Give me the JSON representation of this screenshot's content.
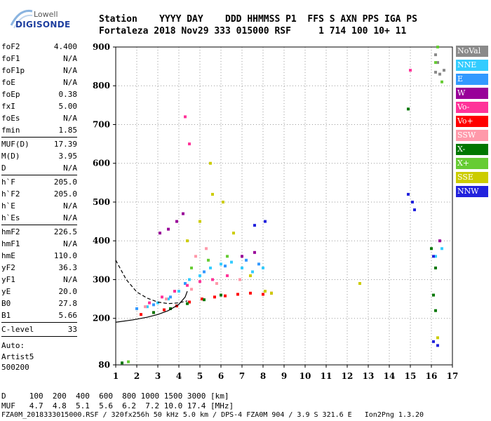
{
  "logo": {
    "line1": "Lowell",
    "line2": "DIGISONDE"
  },
  "header": {
    "row1": "Station    YYYY DAY    DDD HHMMSS P1  FFS S AXN PPS IGA PS",
    "row2": "Fortaleza 2018 Nov29 333 015000 RSF     1 714 100 10+ 11"
  },
  "params": [
    {
      "key": "foF2",
      "value": "4.400"
    },
    {
      "key": "foF1",
      "value": "N/A"
    },
    {
      "key": "foF1p",
      "value": "N/A"
    },
    {
      "key": "foE",
      "value": "N/A"
    },
    {
      "key": "foEp",
      "value": "0.38"
    },
    {
      "key": "fxI",
      "value": "5.00"
    },
    {
      "key": "foEs",
      "value": "N/A"
    },
    {
      "key": "fmin",
      "value": "1.85"
    },
    {
      "key": "MUF(D)",
      "value": "17.39"
    },
    {
      "key": "M(D)",
      "value": "3.95"
    },
    {
      "key": "D",
      "value": "N/A"
    },
    {
      "key": "h`F",
      "value": "205.0"
    },
    {
      "key": "h`F2",
      "value": "205.0"
    },
    {
      "key": "h`E",
      "value": "N/A"
    },
    {
      "key": "h`Es",
      "value": "N/A"
    },
    {
      "key": "hmF2",
      "value": "226.5"
    },
    {
      "key": "hmF1",
      "value": "N/A"
    },
    {
      "key": "hmE",
      "value": "110.0"
    },
    {
      "key": "yF2",
      "value": "36.3"
    },
    {
      "key": "yF1",
      "value": "N/A"
    },
    {
      "key": "yE",
      "value": "20.0"
    },
    {
      "key": "B0",
      "value": "27.8"
    },
    {
      "key": "B1",
      "value": "5.66"
    },
    {
      "key": "C-level",
      "value": "33"
    }
  ],
  "auto": {
    "line1": "Auto:",
    "line2": "Artist5",
    "line3": "500200"
  },
  "legend": [
    {
      "label": "NoVal",
      "color": "#8a8a8a"
    },
    {
      "label": "NNE",
      "color": "#33ccff"
    },
    {
      "label": "E",
      "color": "#3399ff"
    },
    {
      "label": "W",
      "color": "#990099"
    },
    {
      "label": "Vo-",
      "color": "#ff3399"
    },
    {
      "label": "Vo+",
      "color": "#ff0000"
    },
    {
      "label": "SSW",
      "color": "#ff99aa"
    },
    {
      "label": "X-",
      "color": "#007700"
    },
    {
      "label": "X+",
      "color": "#66cc33"
    },
    {
      "label": "SSE",
      "color": "#cccc00"
    },
    {
      "label": "NNW",
      "color": "#2222dd"
    }
  ],
  "footer": {
    "row_d": "D     100  200  400  600  800 1000 1500 3000 [km]",
    "row_muf": "MUF   4.7  4.8  5.1  5.6  6.2  7.2 10.0 17.4 [MHz]",
    "file": "FZA0M_2018333015000.RSF / 320fx256h 50 kHz 5.0 km / DPS-4 FZA0M 904 / 3.9 S 321.6 E   Ion2Png 1.3.20"
  },
  "chart_data": {
    "type": "scatter",
    "title": "",
    "xlabel": "",
    "ylabel": "",
    "xlim": [
      1,
      17
    ],
    "ylim": [
      80,
      900
    ],
    "x_ticks": [
      1,
      2,
      3,
      4,
      5,
      6,
      7,
      8,
      9,
      10,
      11,
      12,
      13,
      14,
      15,
      16,
      17
    ],
    "y_ticks": [
      80,
      200,
      300,
      400,
      500,
      600,
      700,
      800,
      900
    ],
    "grid": true,
    "legend_position": "right",
    "trace_solid": {
      "x": [
        1.0,
        1.8,
        2.5,
        3.0,
        3.5,
        4.0,
        4.3,
        4.4
      ],
      "y": [
        190,
        196,
        203,
        210,
        220,
        236,
        255,
        270
      ]
    },
    "trace_dashed": {
      "x": [
        1.0,
        1.5,
        2.0,
        2.5,
        3.0,
        3.5,
        4.0,
        4.4
      ],
      "y": [
        350,
        300,
        268,
        252,
        242,
        238,
        240,
        245
      ]
    },
    "series": [
      {
        "name": "NoVal",
        "points": [
          [
            16.2,
            880
          ],
          [
            16.3,
            860
          ],
          [
            16.2,
            835
          ],
          [
            16.4,
            830
          ],
          [
            16.6,
            840
          ]
        ]
      },
      {
        "name": "NNE",
        "points": [
          [
            2.5,
            230
          ],
          [
            3.0,
            240
          ],
          [
            3.5,
            250
          ],
          [
            4.0,
            270
          ],
          [
            4.5,
            300
          ],
          [
            5.0,
            310
          ],
          [
            5.5,
            330
          ],
          [
            6.0,
            340
          ],
          [
            6.5,
            345
          ],
          [
            7.0,
            330
          ],
          [
            7.5,
            320
          ],
          [
            8.0,
            330
          ],
          [
            16.2,
            360
          ],
          [
            16.5,
            380
          ]
        ]
      },
      {
        "name": "E",
        "points": [
          [
            2.0,
            225
          ],
          [
            2.8,
            235
          ],
          [
            3.6,
            255
          ],
          [
            4.3,
            290
          ],
          [
            5.2,
            320
          ],
          [
            6.2,
            335
          ],
          [
            7.2,
            350
          ],
          [
            7.8,
            340
          ]
        ]
      },
      {
        "name": "W",
        "points": [
          [
            3.1,
            420
          ],
          [
            3.5,
            430
          ],
          [
            3.9,
            450
          ],
          [
            4.2,
            470
          ],
          [
            7.0,
            360
          ],
          [
            7.6,
            370
          ],
          [
            16.4,
            400
          ]
        ]
      },
      {
        "name": "Vo-",
        "points": [
          [
            2.6,
            240
          ],
          [
            3.2,
            255
          ],
          [
            3.8,
            270
          ],
          [
            4.4,
            285
          ],
          [
            5.0,
            295
          ],
          [
            5.6,
            300
          ],
          [
            6.3,
            310
          ],
          [
            4.3,
            720
          ],
          [
            4.5,
            650
          ],
          [
            15.0,
            840
          ]
        ]
      },
      {
        "name": "Vo+",
        "points": [
          [
            2.2,
            210
          ],
          [
            2.8,
            215
          ],
          [
            3.3,
            222
          ],
          [
            3.9,
            232
          ],
          [
            4.5,
            242
          ],
          [
            5.1,
            250
          ],
          [
            5.7,
            255
          ],
          [
            6.2,
            258
          ],
          [
            6.8,
            262
          ],
          [
            7.4,
            265
          ],
          [
            8.0,
            262
          ],
          [
            8.4,
            265
          ]
        ]
      },
      {
        "name": "SSW",
        "points": [
          [
            2.4,
            230
          ],
          [
            3.4,
            250
          ],
          [
            4.6,
            275
          ],
          [
            5.8,
            290
          ],
          [
            6.9,
            300
          ],
          [
            4.8,
            360
          ],
          [
            5.3,
            380
          ]
        ]
      },
      {
        "name": "X-",
        "points": [
          [
            1.3,
            85
          ],
          [
            2.8,
            215
          ],
          [
            3.6,
            225
          ],
          [
            4.4,
            238
          ],
          [
            5.2,
            248
          ],
          [
            6.0,
            260
          ],
          [
            16.0,
            380
          ],
          [
            16.2,
            330
          ],
          [
            16.1,
            260
          ],
          [
            16.2,
            220
          ],
          [
            14.9,
            740
          ]
        ]
      },
      {
        "name": "X+",
        "points": [
          [
            1.6,
            88
          ],
          [
            4.6,
            330
          ],
          [
            5.4,
            350
          ],
          [
            6.3,
            360
          ],
          [
            16.3,
            900
          ],
          [
            16.2,
            860
          ],
          [
            16.5,
            810
          ]
        ]
      },
      {
        "name": "SSE",
        "points": [
          [
            4.4,
            400
          ],
          [
            5.0,
            450
          ],
          [
            5.6,
            520
          ],
          [
            5.5,
            600
          ],
          [
            6.1,
            500
          ],
          [
            6.6,
            420
          ],
          [
            7.4,
            310
          ],
          [
            8.1,
            270
          ],
          [
            8.4,
            265
          ],
          [
            12.6,
            290
          ],
          [
            16.3,
            150
          ]
        ]
      },
      {
        "name": "NNW",
        "points": [
          [
            7.6,
            440
          ],
          [
            8.1,
            450
          ],
          [
            14.9,
            520
          ],
          [
            15.1,
            500
          ],
          [
            15.2,
            480
          ],
          [
            16.1,
            140
          ],
          [
            16.3,
            130
          ],
          [
            16.1,
            360
          ]
        ]
      }
    ]
  }
}
